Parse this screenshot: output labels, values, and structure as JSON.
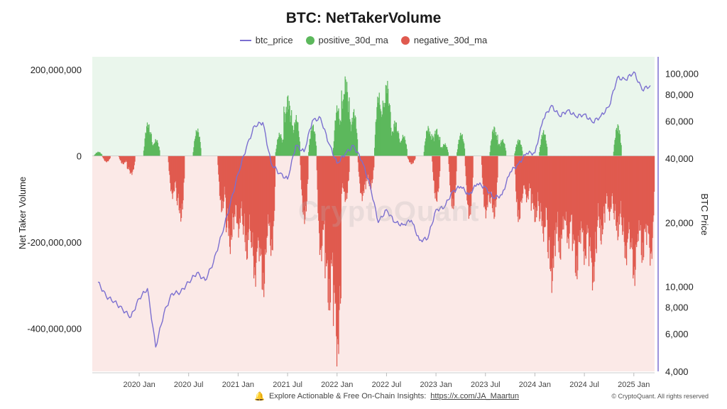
{
  "chart_data": {
    "type": "bar",
    "title": "BTC: NetTakerVolume",
    "legend": [
      {
        "name": "btc_price",
        "color": "#7b6fd0",
        "shape": "line"
      },
      {
        "name": "positive_30d_ma",
        "color": "#5cb85c",
        "shape": "dot"
      },
      {
        "name": "negative_30d_ma",
        "color": "#e05a4f",
        "shape": "dot"
      }
    ],
    "legend_position": "top-center",
    "ylabel_left": "Net Taker Volume",
    "ylabel_right": "BTC Price",
    "left_axis": {
      "range": [
        -500000000,
        230000000
      ],
      "ticks": [
        200000000,
        0,
        -200000000,
        -400000000
      ],
      "tick_labels": [
        "200,000,000",
        "0",
        "-200,000,000",
        "-400,000,000"
      ]
    },
    "right_axis": {
      "scale": "log",
      "range": [
        4000,
        120000
      ],
      "ticks": [
        100000,
        80000,
        60000,
        40000,
        20000,
        10000,
        8000,
        6000,
        4000
      ],
      "tick_labels": [
        "100,000",
        "80,000",
        "60,000",
        "40,000",
        "20,000",
        "10,000",
        "8,000",
        "6,000",
        "4,000"
      ]
    },
    "x_ticks": [
      "2020 Jan",
      "2020 Jul",
      "2021 Jan",
      "2021 Jul",
      "2022 Jan",
      "2022 Jul",
      "2023 Jan",
      "2023 Jul",
      "2024 Jan",
      "2024 Jul",
      "2025 Jan"
    ],
    "x_range": [
      "2019-08",
      "2025-03"
    ],
    "colors": {
      "positive": "#5cb85c",
      "negative": "#e05a4f",
      "price": "#7b6fd0",
      "positive_bg": "#eaf6ec",
      "negative_bg": "#fbe9e7"
    },
    "series": [
      {
        "name": "btc_price",
        "points": [
          [
            "2019-08",
            10500
          ],
          [
            "2019-09",
            9000
          ],
          [
            "2019-10",
            8500
          ],
          [
            "2019-11",
            7800
          ],
          [
            "2019-12",
            7200
          ],
          [
            "2020-01",
            8800
          ],
          [
            "2020-02",
            9800
          ],
          [
            "2020-03",
            5200
          ],
          [
            "2020-04",
            7500
          ],
          [
            "2020-05",
            9300
          ],
          [
            "2020-06",
            9400
          ],
          [
            "2020-07",
            10500
          ],
          [
            "2020-08",
            11600
          ],
          [
            "2020-09",
            10700
          ],
          [
            "2020-10",
            13000
          ],
          [
            "2020-11",
            17500
          ],
          [
            "2020-12",
            24000
          ],
          [
            "2021-01",
            34000
          ],
          [
            "2021-02",
            45000
          ],
          [
            "2021-03",
            57000
          ],
          [
            "2021-04",
            59000
          ],
          [
            "2021-05",
            38000
          ],
          [
            "2021-06",
            34000
          ],
          [
            "2021-07",
            32000
          ],
          [
            "2021-08",
            46000
          ],
          [
            "2021-09",
            43000
          ],
          [
            "2021-10",
            60000
          ],
          [
            "2021-11",
            62000
          ],
          [
            "2021-12",
            47000
          ],
          [
            "2022-01",
            38000
          ],
          [
            "2022-02",
            42000
          ],
          [
            "2022-03",
            46000
          ],
          [
            "2022-04",
            39000
          ],
          [
            "2022-05",
            30000
          ],
          [
            "2022-06",
            20000
          ],
          [
            "2022-07",
            23000
          ],
          [
            "2022-08",
            20000
          ],
          [
            "2022-09",
            19500
          ],
          [
            "2022-10",
            20500
          ],
          [
            "2022-11",
            16500
          ],
          [
            "2022-12",
            16800
          ],
          [
            "2023-01",
            23000
          ],
          [
            "2023-02",
            23500
          ],
          [
            "2023-03",
            28000
          ],
          [
            "2023-04",
            29500
          ],
          [
            "2023-05",
            27000
          ],
          [
            "2023-06",
            30400
          ],
          [
            "2023-07",
            29300
          ],
          [
            "2023-08",
            26000
          ],
          [
            "2023-09",
            27000
          ],
          [
            "2023-10",
            34500
          ],
          [
            "2023-11",
            37700
          ],
          [
            "2023-12",
            42300
          ],
          [
            "2024-01",
            42500
          ],
          [
            "2024-02",
            61000
          ],
          [
            "2024-03",
            71000
          ],
          [
            "2024-04",
            63000
          ],
          [
            "2024-05",
            67500
          ],
          [
            "2024-06",
            62700
          ],
          [
            "2024-07",
            64600
          ],
          [
            "2024-08",
            59000
          ],
          [
            "2024-09",
            63300
          ],
          [
            "2024-10",
            70000
          ],
          [
            "2024-11",
            96000
          ],
          [
            "2024-12",
            93500
          ],
          [
            "2025-01",
            102000
          ],
          [
            "2025-02",
            84000
          ],
          [
            "2025-03",
            88000
          ]
        ]
      },
      {
        "name": "positive_30d_ma",
        "points": [
          [
            "2019-08",
            10000000
          ],
          [
            "2020-02",
            80000000
          ],
          [
            "2020-03",
            40000000
          ],
          [
            "2020-08",
            65000000
          ],
          [
            "2021-06",
            55000000
          ],
          [
            "2021-07",
            145000000
          ],
          [
            "2021-08",
            95000000
          ],
          [
            "2021-10",
            75000000
          ],
          [
            "2022-01",
            120000000
          ],
          [
            "2022-02",
            190000000
          ],
          [
            "2022-03",
            110000000
          ],
          [
            "2022-06",
            150000000
          ],
          [
            "2022-07",
            180000000
          ],
          [
            "2022-08",
            85000000
          ],
          [
            "2022-09",
            50000000
          ],
          [
            "2022-12",
            70000000
          ],
          [
            "2023-01",
            65000000
          ],
          [
            "2023-02",
            30000000
          ],
          [
            "2023-04",
            55000000
          ],
          [
            "2023-08",
            70000000
          ],
          [
            "2023-09",
            40000000
          ],
          [
            "2023-11",
            40000000
          ],
          [
            "2024-02",
            60000000
          ],
          [
            "2024-11",
            75000000
          ]
        ]
      },
      {
        "name": "negative_30d_ma",
        "points": [
          [
            "2019-09",
            -15000000
          ],
          [
            "2019-11",
            -20000000
          ],
          [
            "2019-12",
            -45000000
          ],
          [
            "2020-05",
            -100000000
          ],
          [
            "2020-06",
            -155000000
          ],
          [
            "2020-11",
            -135000000
          ],
          [
            "2020-12",
            -230000000
          ],
          [
            "2021-01",
            -190000000
          ],
          [
            "2021-02",
            -250000000
          ],
          [
            "2021-03",
            -310000000
          ],
          [
            "2021-04",
            -340000000
          ],
          [
            "2021-05",
            -240000000
          ],
          [
            "2021-09",
            -160000000
          ],
          [
            "2021-11",
            -250000000
          ],
          [
            "2021-12",
            -380000000
          ],
          [
            "2022-01",
            -500000000
          ],
          [
            "2022-02",
            -110000000
          ],
          [
            "2022-04",
            -105000000
          ],
          [
            "2022-05",
            -80000000
          ],
          [
            "2022-10",
            -20000000
          ],
          [
            "2023-01",
            -110000000
          ],
          [
            "2023-03",
            -130000000
          ],
          [
            "2023-05",
            -150000000
          ],
          [
            "2023-07",
            -145000000
          ],
          [
            "2023-08",
            -150000000
          ],
          [
            "2023-11",
            -160000000
          ],
          [
            "2023-12",
            -110000000
          ],
          [
            "2024-01",
            -160000000
          ],
          [
            "2024-02",
            -200000000
          ],
          [
            "2024-03",
            -320000000
          ],
          [
            "2024-04",
            -250000000
          ],
          [
            "2024-05",
            -220000000
          ],
          [
            "2024-06",
            -300000000
          ],
          [
            "2024-07",
            -260000000
          ],
          [
            "2024-08",
            -320000000
          ],
          [
            "2024-09",
            -210000000
          ],
          [
            "2024-10",
            -150000000
          ],
          [
            "2024-11",
            -200000000
          ],
          [
            "2024-12",
            -260000000
          ],
          [
            "2025-01",
            -310000000
          ],
          [
            "2025-02",
            -260000000
          ],
          [
            "2025-03",
            -260000000
          ]
        ]
      }
    ]
  },
  "watermark": "CryptoQuant",
  "footer": {
    "text": "Explore Actionable & Free On-Chain Insights:",
    "link": "https://x.com/JA_Maartun",
    "copyright": "© CryptoQuant. All rights reserved"
  }
}
